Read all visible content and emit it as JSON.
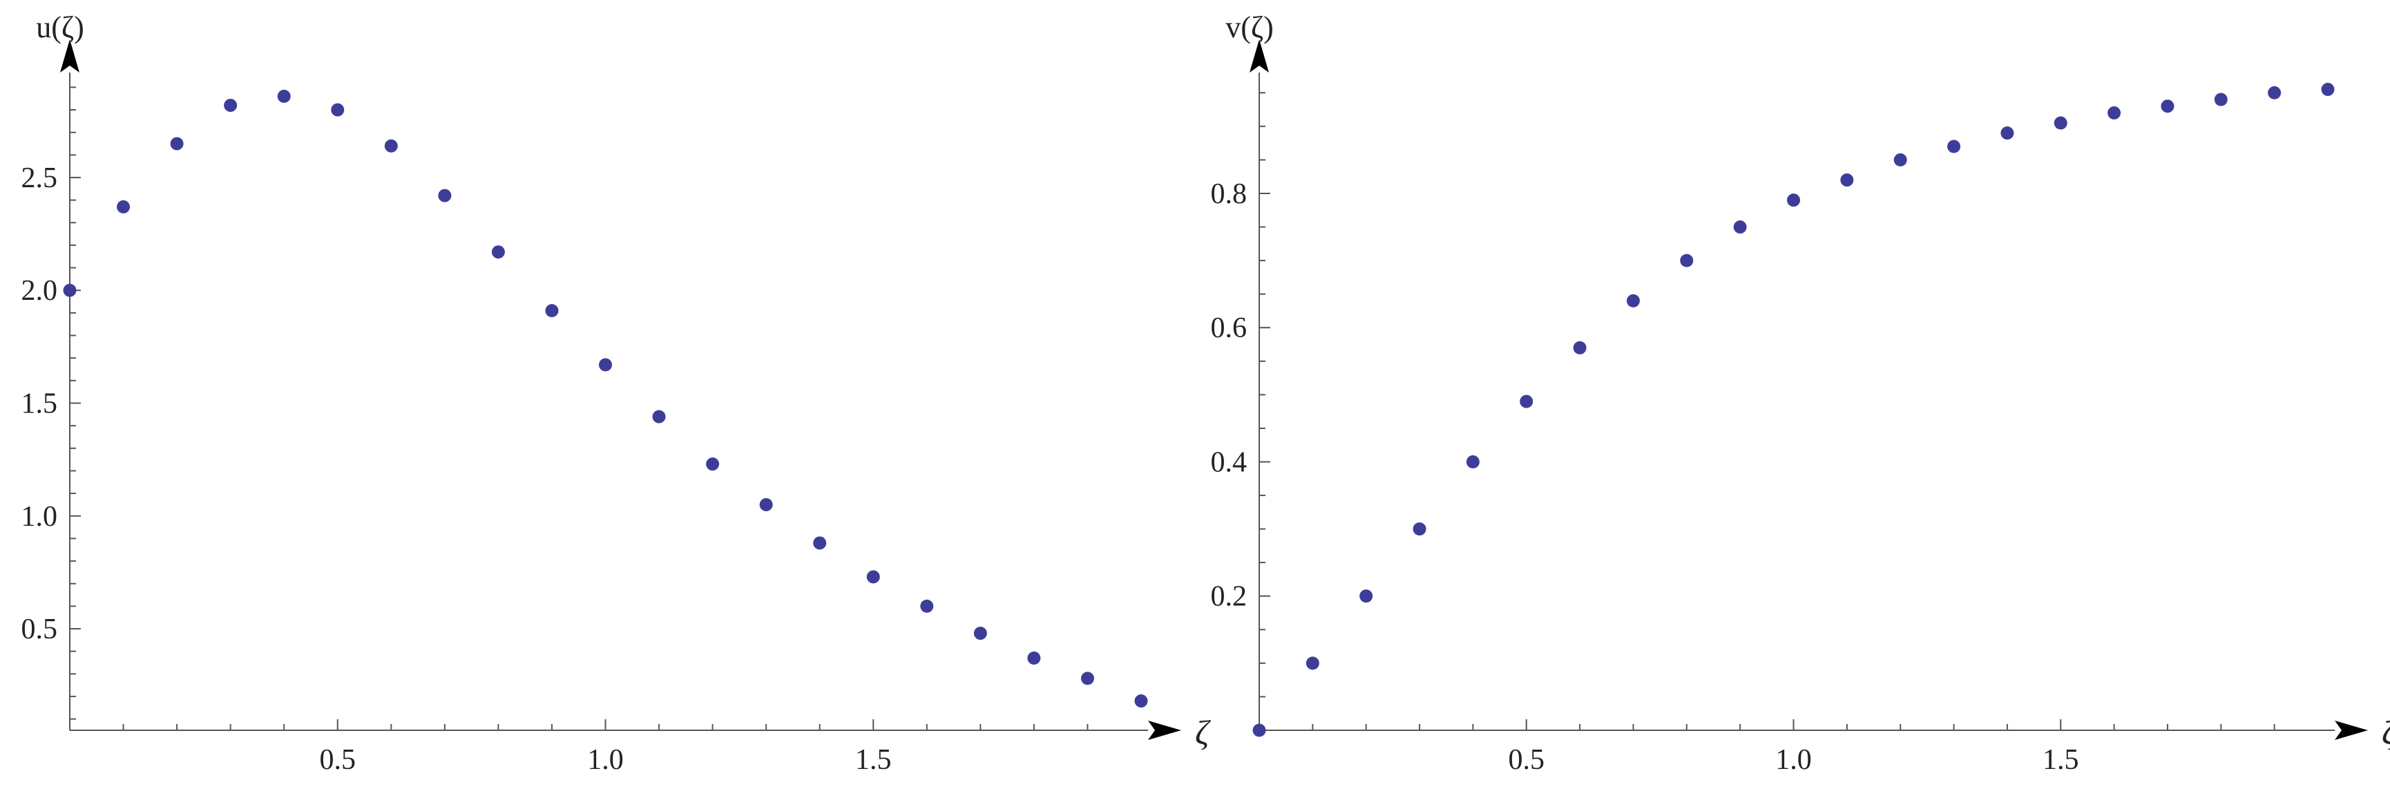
{
  "colors": {
    "marker": "#3d3d99",
    "axis": "#555555",
    "text": "#222222"
  },
  "chart_data": [
    {
      "type": "scatter",
      "xlabel": "ζ",
      "ylabel": "u(ζ)",
      "xlim": [
        0,
        2.0
      ],
      "ylim": [
        0.05,
        2.95
      ],
      "x_ticks": [
        0.5,
        1.0,
        1.5
      ],
      "x_tick_labels": [
        "0.5",
        "1.0",
        "1.5"
      ],
      "y_ticks": [
        0.5,
        1.0,
        1.5,
        2.0,
        2.5
      ],
      "y_tick_labels": [
        "0.5",
        "1.0",
        "1.5",
        "2.0",
        "2.5"
      ],
      "grid": false,
      "series": [
        {
          "x": [
            0.0,
            0.1,
            0.2,
            0.3,
            0.4,
            0.5,
            0.6,
            0.7,
            0.8,
            0.9,
            1.0,
            1.1,
            1.2,
            1.3,
            1.4,
            1.5,
            1.6,
            1.7,
            1.8,
            1.9,
            2.0
          ],
          "y": [
            2.0,
            2.37,
            2.65,
            2.82,
            2.86,
            2.8,
            2.64,
            2.42,
            2.17,
            1.91,
            1.67,
            1.44,
            1.23,
            1.05,
            0.88,
            0.73,
            0.6,
            0.48,
            0.37,
            0.28,
            0.18
          ]
        }
      ]
    },
    {
      "type": "scatter",
      "xlabel": "ζ",
      "ylabel": "v(ζ)",
      "xlim": [
        0,
        2.0
      ],
      "ylim": [
        0,
        0.975
      ],
      "x_ticks": [
        0.5,
        1.0,
        1.5
      ],
      "x_tick_labels": [
        "0.5",
        "1.0",
        "1.5"
      ],
      "y_ticks": [
        0.2,
        0.4,
        0.6,
        0.8
      ],
      "y_tick_labels": [
        "0.2",
        "0.4",
        "0.6",
        "0.8"
      ],
      "grid": false,
      "series": [
        {
          "x": [
            0.0,
            0.1,
            0.2,
            0.3,
            0.4,
            0.5,
            0.6,
            0.7,
            0.8,
            0.9,
            1.0,
            1.1,
            1.2,
            1.3,
            1.4,
            1.5,
            1.6,
            1.7,
            1.8,
            1.9,
            2.0
          ],
          "y": [
            0.0,
            0.1,
            0.2,
            0.3,
            0.4,
            0.49,
            0.57,
            0.64,
            0.7,
            0.75,
            0.79,
            0.82,
            0.85,
            0.87,
            0.89,
            0.905,
            0.92,
            0.93,
            0.94,
            0.95,
            0.955
          ]
        }
      ]
    }
  ]
}
